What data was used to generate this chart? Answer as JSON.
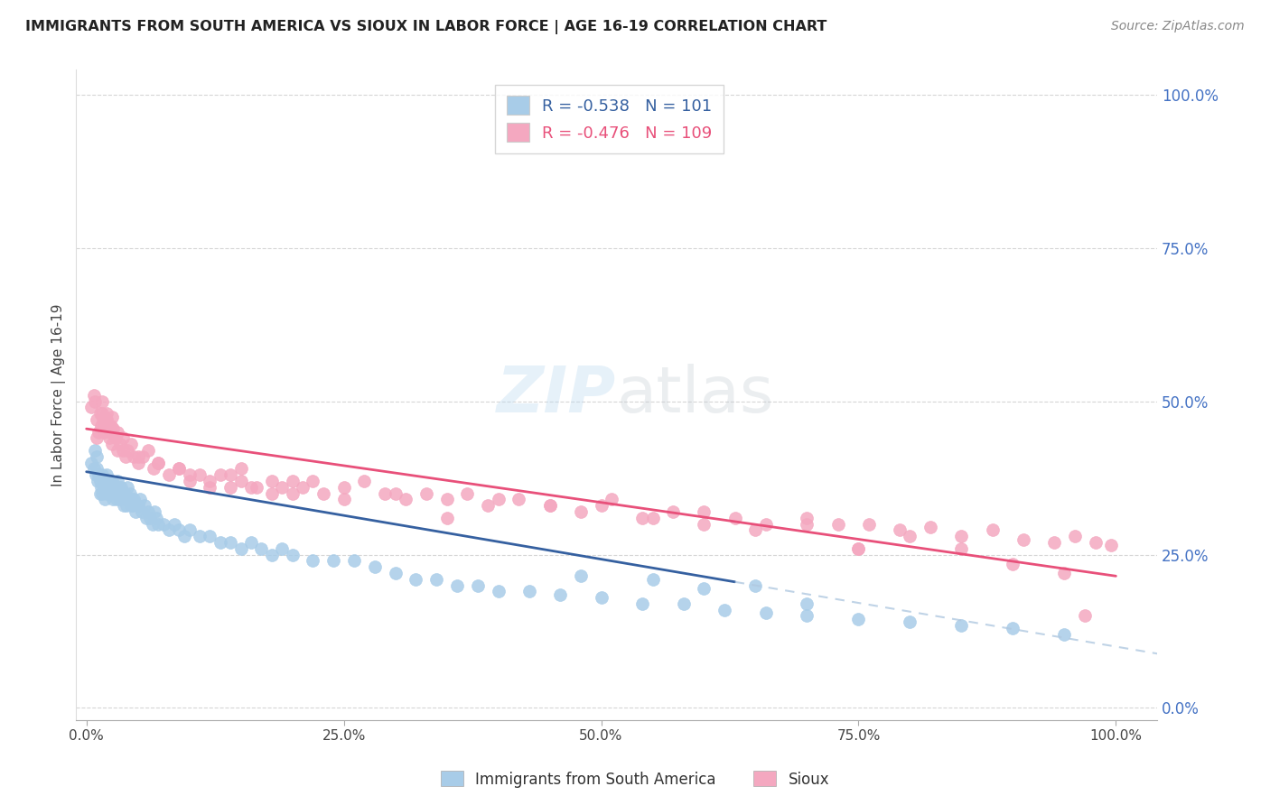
{
  "title": "IMMIGRANTS FROM SOUTH AMERICA VS SIOUX IN LABOR FORCE | AGE 16-19 CORRELATION CHART",
  "source": "Source: ZipAtlas.com",
  "ylabel": "In Labor Force | Age 16-19",
  "r_blue": -0.538,
  "n_blue": 101,
  "r_pink": -0.476,
  "n_pink": 109,
  "legend_label_blue": "Immigrants from South America",
  "legend_label_pink": "Sioux",
  "color_blue": "#a8cce8",
  "color_pink": "#f4a8c0",
  "line_color_blue": "#3560a0",
  "line_color_pink": "#e8507a",
  "line_color_blue_dashed": "#b0c8e0",
  "label_color_blue": "#3560a0",
  "label_color_pink": "#e8507a",
  "title_color": "#222222",
  "grid_color": "#cccccc",
  "right_tick_color": "#4472c4",
  "ytick_labels": [
    "0.0%",
    "25.0%",
    "50.0%",
    "75.0%",
    "100.0%"
  ],
  "ytick_vals": [
    0.0,
    0.25,
    0.5,
    0.75,
    1.0
  ],
  "xtick_labels": [
    "0.0%",
    "25.0%",
    "50.0%",
    "75.0%",
    "100.0%"
  ],
  "xtick_vals": [
    0.0,
    0.25,
    0.5,
    0.75,
    1.0
  ],
  "blue_line_x0": 0.0,
  "blue_line_y0": 0.385,
  "blue_line_x1": 1.0,
  "blue_line_y1": 0.1,
  "blue_line_solid_end": 0.63,
  "pink_line_x0": 0.0,
  "pink_line_y0": 0.455,
  "pink_line_x1": 1.0,
  "pink_line_y1": 0.215,
  "blue_x": [
    0.005,
    0.007,
    0.008,
    0.009,
    0.01,
    0.01,
    0.011,
    0.012,
    0.013,
    0.013,
    0.014,
    0.015,
    0.015,
    0.016,
    0.017,
    0.018,
    0.019,
    0.02,
    0.02,
    0.021,
    0.022,
    0.023,
    0.024,
    0.025,
    0.026,
    0.027,
    0.028,
    0.029,
    0.03,
    0.031,
    0.032,
    0.033,
    0.034,
    0.035,
    0.036,
    0.037,
    0.038,
    0.039,
    0.04,
    0.041,
    0.042,
    0.043,
    0.044,
    0.045,
    0.046,
    0.048,
    0.05,
    0.052,
    0.054,
    0.056,
    0.058,
    0.06,
    0.062,
    0.064,
    0.066,
    0.068,
    0.07,
    0.075,
    0.08,
    0.085,
    0.09,
    0.095,
    0.1,
    0.11,
    0.12,
    0.13,
    0.14,
    0.15,
    0.16,
    0.17,
    0.18,
    0.19,
    0.2,
    0.22,
    0.24,
    0.26,
    0.28,
    0.3,
    0.32,
    0.34,
    0.36,
    0.38,
    0.4,
    0.43,
    0.46,
    0.5,
    0.54,
    0.58,
    0.62,
    0.66,
    0.7,
    0.75,
    0.8,
    0.85,
    0.9,
    0.95,
    0.65,
    0.7,
    0.55,
    0.6,
    0.48
  ],
  "blue_y": [
    0.4,
    0.39,
    0.42,
    0.38,
    0.41,
    0.39,
    0.37,
    0.38,
    0.35,
    0.37,
    0.36,
    0.38,
    0.35,
    0.37,
    0.36,
    0.34,
    0.36,
    0.35,
    0.38,
    0.36,
    0.37,
    0.35,
    0.36,
    0.37,
    0.34,
    0.36,
    0.35,
    0.34,
    0.37,
    0.35,
    0.36,
    0.34,
    0.36,
    0.35,
    0.33,
    0.35,
    0.34,
    0.33,
    0.36,
    0.34,
    0.35,
    0.33,
    0.34,
    0.33,
    0.34,
    0.32,
    0.33,
    0.34,
    0.32,
    0.33,
    0.31,
    0.32,
    0.31,
    0.3,
    0.32,
    0.31,
    0.3,
    0.3,
    0.29,
    0.3,
    0.29,
    0.28,
    0.29,
    0.28,
    0.28,
    0.27,
    0.27,
    0.26,
    0.27,
    0.26,
    0.25,
    0.26,
    0.25,
    0.24,
    0.24,
    0.24,
    0.23,
    0.22,
    0.21,
    0.21,
    0.2,
    0.2,
    0.19,
    0.19,
    0.185,
    0.18,
    0.17,
    0.17,
    0.16,
    0.155,
    0.15,
    0.145,
    0.14,
    0.135,
    0.13,
    0.12,
    0.2,
    0.17,
    0.21,
    0.195,
    0.215
  ],
  "pink_x": [
    0.005,
    0.007,
    0.008,
    0.01,
    0.012,
    0.013,
    0.014,
    0.015,
    0.016,
    0.017,
    0.018,
    0.019,
    0.02,
    0.021,
    0.022,
    0.023,
    0.024,
    0.025,
    0.026,
    0.028,
    0.03,
    0.033,
    0.035,
    0.038,
    0.04,
    0.043,
    0.046,
    0.05,
    0.055,
    0.06,
    0.065,
    0.07,
    0.08,
    0.09,
    0.1,
    0.11,
    0.12,
    0.13,
    0.14,
    0.15,
    0.165,
    0.18,
    0.19,
    0.2,
    0.21,
    0.22,
    0.23,
    0.25,
    0.27,
    0.29,
    0.31,
    0.33,
    0.35,
    0.37,
    0.39,
    0.42,
    0.45,
    0.48,
    0.51,
    0.54,
    0.57,
    0.6,
    0.63,
    0.66,
    0.7,
    0.73,
    0.76,
    0.79,
    0.82,
    0.85,
    0.88,
    0.91,
    0.94,
    0.96,
    0.98,
    0.995,
    0.01,
    0.015,
    0.02,
    0.025,
    0.03,
    0.035,
    0.05,
    0.07,
    0.09,
    0.1,
    0.12,
    0.14,
    0.16,
    0.18,
    0.2,
    0.25,
    0.3,
    0.4,
    0.5,
    0.6,
    0.7,
    0.8,
    0.75,
    0.85,
    0.9,
    0.95,
    0.97,
    0.45,
    0.55,
    0.65,
    0.75,
    0.35,
    0.15
  ],
  "pink_y": [
    0.49,
    0.51,
    0.5,
    0.47,
    0.45,
    0.48,
    0.46,
    0.5,
    0.47,
    0.45,
    0.46,
    0.47,
    0.48,
    0.46,
    0.44,
    0.45,
    0.46,
    0.475,
    0.455,
    0.44,
    0.42,
    0.43,
    0.44,
    0.41,
    0.42,
    0.43,
    0.41,
    0.4,
    0.41,
    0.42,
    0.39,
    0.4,
    0.38,
    0.39,
    0.37,
    0.38,
    0.36,
    0.38,
    0.36,
    0.37,
    0.36,
    0.37,
    0.36,
    0.35,
    0.36,
    0.37,
    0.35,
    0.36,
    0.37,
    0.35,
    0.34,
    0.35,
    0.34,
    0.35,
    0.33,
    0.34,
    0.33,
    0.32,
    0.34,
    0.31,
    0.32,
    0.3,
    0.31,
    0.3,
    0.31,
    0.3,
    0.3,
    0.29,
    0.295,
    0.28,
    0.29,
    0.275,
    0.27,
    0.28,
    0.27,
    0.265,
    0.44,
    0.48,
    0.47,
    0.43,
    0.45,
    0.42,
    0.41,
    0.4,
    0.39,
    0.38,
    0.37,
    0.38,
    0.36,
    0.35,
    0.37,
    0.34,
    0.35,
    0.34,
    0.33,
    0.32,
    0.3,
    0.28,
    0.26,
    0.26,
    0.235,
    0.22,
    0.15,
    0.33,
    0.31,
    0.29,
    0.26,
    0.31,
    0.39
  ]
}
